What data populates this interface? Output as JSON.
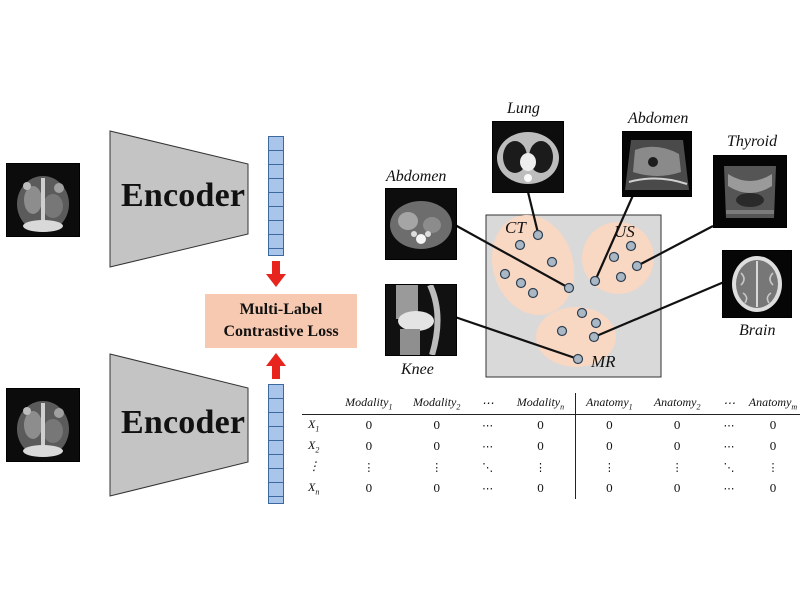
{
  "encoders": [
    {
      "label": "Encoder"
    },
    {
      "label": "Encoder"
    }
  ],
  "loss": {
    "line1": "Multi-Label",
    "line2": "Contrastive Loss"
  },
  "embedding": {
    "modality_labels": [
      "CT",
      "US",
      "MR"
    ],
    "organs": {
      "lung": "Lung",
      "abdomen_us": "Abdomen",
      "thyroid": "Thyroid",
      "abdomen_ct": "Abdomen",
      "brain": "Brain",
      "knee": "Knee"
    }
  },
  "matrix": {
    "headers": [
      {
        "text": "Modality",
        "sub": "1"
      },
      {
        "text": "Modality",
        "sub": "2"
      },
      {
        "text": "⋯",
        "sub": ""
      },
      {
        "text": "Modality",
        "sub": "n"
      },
      {
        "text": "Anatomy",
        "sub": "1"
      },
      {
        "text": "Anatomy",
        "sub": "2"
      },
      {
        "text": "⋯",
        "sub": ""
      },
      {
        "text": "Anatomy",
        "sub": "m"
      }
    ],
    "rows": [
      {
        "label": "X",
        "sub": "1",
        "cells": [
          "0",
          "0",
          "⋯",
          "0",
          "0",
          "0",
          "⋯",
          "0"
        ]
      },
      {
        "label": "X",
        "sub": "2",
        "cells": [
          "0",
          "0",
          "⋯",
          "0",
          "0",
          "0",
          "⋯",
          "0"
        ]
      },
      {
        "label": "⋮",
        "sub": "",
        "cells": [
          "⋮",
          "⋮",
          "⋱",
          "⋮",
          "⋮",
          "⋮",
          "⋱",
          "⋮"
        ]
      },
      {
        "label": "X",
        "sub": "n",
        "cells": [
          "0",
          "0",
          "⋯",
          "0",
          "0",
          "0",
          "⋯",
          "0"
        ]
      }
    ]
  },
  "colors": {
    "encoder_fill": "#c4c4c4",
    "vector_fill": "#a9c6ea",
    "loss_fill": "#f6c9b0",
    "cluster_fill": "#f8d7c3",
    "arrow": "#e8251d",
    "space_fill": "#d9d9d9"
  }
}
